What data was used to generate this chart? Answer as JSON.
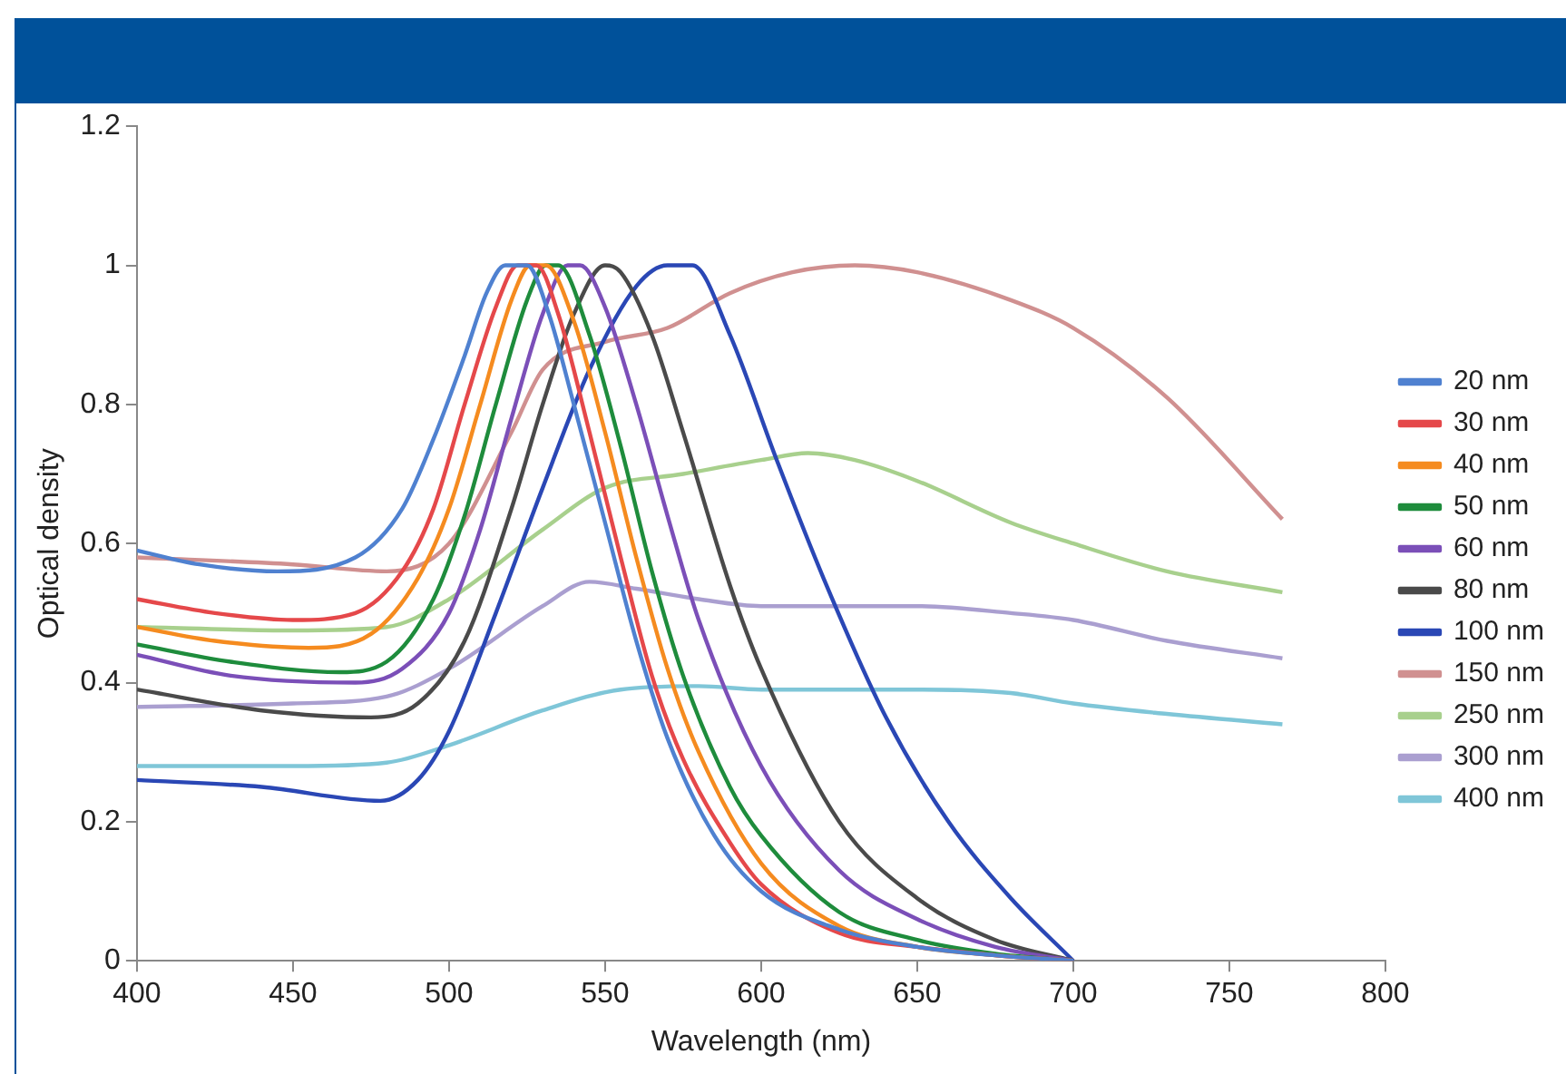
{
  "chart_data": {
    "type": "line",
    "xlabel": "Wavelength (nm)",
    "ylabel": "Optical density",
    "xlim": [
      400,
      800
    ],
    "xticks": [
      400,
      450,
      500,
      550,
      600,
      650,
      700,
      750,
      800
    ],
    "ylim": [
      0,
      1.2
    ],
    "yticks": [
      0,
      0.2,
      0.4,
      0.6,
      0.8,
      1,
      1.2
    ],
    "grid": false,
    "legend": "right",
    "marker": "none",
    "line_style": "solid",
    "series": [
      {
        "name": "20 nm",
        "color": "#4f81d0",
        "x": [
          400,
          420,
          445,
          470,
          485,
          495,
          505,
          512,
          518,
          525,
          532,
          540,
          550,
          560,
          570,
          585,
          600,
          625,
          650,
          675,
          700
        ],
        "values": [
          0.59,
          0.57,
          0.56,
          0.58,
          0.65,
          0.75,
          0.87,
          0.96,
          1.0,
          1.0,
          0.93,
          0.8,
          0.63,
          0.46,
          0.32,
          0.18,
          0.1,
          0.045,
          0.02,
          0.008,
          0
        ]
      },
      {
        "name": "30 nm",
        "color": "#e5484a",
        "x": [
          400,
          425,
          450,
          470,
          485,
          495,
          505,
          515,
          522,
          528,
          535,
          545,
          555,
          565,
          575,
          590,
          600,
          625,
          650,
          675,
          700
        ],
        "values": [
          0.52,
          0.5,
          0.49,
          0.5,
          0.56,
          0.65,
          0.8,
          0.94,
          1.0,
          1.0,
          0.93,
          0.76,
          0.58,
          0.41,
          0.29,
          0.17,
          0.11,
          0.04,
          0.02,
          0.008,
          0
        ]
      },
      {
        "name": "40 nm",
        "color": "#f58b1f",
        "x": [
          400,
          425,
          455,
          475,
          490,
          500,
          510,
          520,
          526,
          531,
          540,
          550,
          560,
          570,
          580,
          600,
          625,
          650,
          675,
          700
        ],
        "values": [
          0.48,
          0.46,
          0.45,
          0.47,
          0.55,
          0.65,
          0.8,
          0.95,
          1.0,
          1.0,
          0.92,
          0.76,
          0.58,
          0.42,
          0.3,
          0.14,
          0.05,
          0.02,
          0.008,
          0
        ]
      },
      {
        "name": "50 nm",
        "color": "#1e8c3c",
        "x": [
          400,
          430,
          465,
          480,
          495,
          505,
          515,
          525,
          531,
          535,
          545,
          555,
          565,
          575,
          590,
          600,
          625,
          650,
          675,
          700
        ],
        "values": [
          0.455,
          0.43,
          0.415,
          0.43,
          0.52,
          0.64,
          0.8,
          0.95,
          1.0,
          1.0,
          0.9,
          0.74,
          0.56,
          0.41,
          0.25,
          0.18,
          0.07,
          0.03,
          0.01,
          0
        ]
      },
      {
        "name": "60 nm",
        "color": "#7b4fb8",
        "x": [
          400,
          430,
          470,
          485,
          500,
          510,
          520,
          530,
          538,
          542,
          550,
          560,
          570,
          580,
          600,
          625,
          650,
          675,
          700
        ],
        "values": [
          0.44,
          0.41,
          0.4,
          0.42,
          0.5,
          0.62,
          0.78,
          0.93,
          1.0,
          1.0,
          0.94,
          0.8,
          0.64,
          0.49,
          0.28,
          0.13,
          0.06,
          0.02,
          0
        ]
      },
      {
        "name": "80 nm",
        "color": "#4a4a4a",
        "x": [
          400,
          440,
          475,
          490,
          505,
          520,
          530,
          540,
          550,
          555,
          565,
          575,
          590,
          600,
          625,
          650,
          675,
          700
        ],
        "values": [
          0.39,
          0.36,
          0.35,
          0.37,
          0.46,
          0.65,
          0.8,
          0.93,
          1.0,
          0.99,
          0.9,
          0.76,
          0.54,
          0.42,
          0.2,
          0.09,
          0.03,
          0
        ]
      },
      {
        "name": "100 nm",
        "color": "#2a47b5",
        "x": [
          400,
          440,
          478,
          490,
          500,
          515,
          530,
          545,
          560,
          570,
          578,
          590,
          605,
          620,
          640,
          660,
          680,
          700
        ],
        "values": [
          0.26,
          0.25,
          0.23,
          0.26,
          0.33,
          0.5,
          0.68,
          0.85,
          0.97,
          1.0,
          1.0,
          0.9,
          0.72,
          0.55,
          0.35,
          0.2,
          0.09,
          0
        ]
      },
      {
        "name": "150 nm",
        "color": "#d09090",
        "x": [
          400,
          450,
          480,
          500,
          520,
          530,
          550,
          570,
          590,
          610,
          630,
          650,
          680,
          700,
          730,
          767
        ],
        "values": [
          0.58,
          0.57,
          0.56,
          0.6,
          0.76,
          0.85,
          0.89,
          0.91,
          0.96,
          0.99,
          1.0,
          0.99,
          0.95,
          0.91,
          0.81,
          0.635
        ]
      },
      {
        "name": "250 nm",
        "color": "#a8d08d",
        "x": [
          400,
          450,
          480,
          500,
          530,
          550,
          575,
          600,
          615,
          630,
          650,
          680,
          700,
          730,
          767
        ],
        "values": [
          0.48,
          0.475,
          0.48,
          0.52,
          0.62,
          0.68,
          0.7,
          0.72,
          0.73,
          0.72,
          0.69,
          0.63,
          0.6,
          0.56,
          0.53
        ]
      },
      {
        "name": "300 nm",
        "color": "#aa9fd0",
        "x": [
          400,
          450,
          480,
          500,
          530,
          545,
          560,
          580,
          600,
          650,
          680,
          700,
          730,
          767
        ],
        "values": [
          0.365,
          0.37,
          0.38,
          0.42,
          0.51,
          0.545,
          0.535,
          0.52,
          0.51,
          0.51,
          0.5,
          0.49,
          0.46,
          0.435
        ]
      },
      {
        "name": "400 nm",
        "color": "#7fc6d8",
        "x": [
          400,
          450,
          480,
          500,
          530,
          555,
          580,
          600,
          650,
          680,
          700,
          730,
          767
        ],
        "values": [
          0.28,
          0.28,
          0.285,
          0.31,
          0.36,
          0.39,
          0.395,
          0.39,
          0.39,
          0.385,
          0.37,
          0.355,
          0.34
        ]
      }
    ]
  }
}
